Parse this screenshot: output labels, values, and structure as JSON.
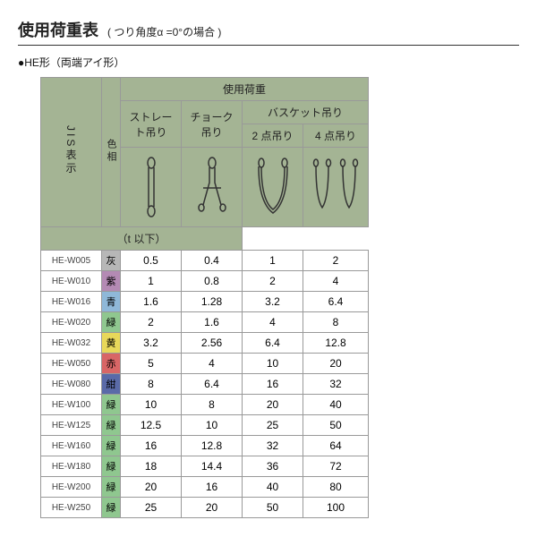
{
  "title": "使用荷重表",
  "subtitle": "( つり角度α =0°の場合 )",
  "bullet": "●HE形（両端アイ形）",
  "headers": {
    "jis": "JIS表示",
    "color": "色相",
    "load_group": "使用荷重",
    "straight": "ストレート吊り",
    "choke": "チョーク吊り",
    "basket": "バスケット吊り",
    "two_point": "2 点吊り",
    "four_point": "4 点吊り",
    "unit": "（t 以下）"
  },
  "colors": {
    "灰": "#b7b7b7",
    "紫": "#b48ab4",
    "青": "#8fb8d8",
    "緑": "#8fc78f",
    "黄": "#e8d85a",
    "赤": "#d86666",
    "紺": "#5a6aa8"
  },
  "rows": [
    {
      "code": "HE-W005",
      "colorLabel": "灰",
      "colorKey": "灰",
      "v": [
        0.5,
        0.4,
        1.0,
        2.0
      ]
    },
    {
      "code": "HE-W010",
      "colorLabel": "紫",
      "colorKey": "紫",
      "v": [
        1.0,
        0.8,
        2.0,
        4.0
      ]
    },
    {
      "code": "HE-W016",
      "colorLabel": "青",
      "colorKey": "青",
      "v": [
        1.6,
        1.28,
        3.2,
        6.4
      ]
    },
    {
      "code": "HE-W020",
      "colorLabel": "緑",
      "colorKey": "緑",
      "v": [
        2.0,
        1.6,
        4.0,
        8.0
      ]
    },
    {
      "code": "HE-W032",
      "colorLabel": "黄",
      "colorKey": "黄",
      "v": [
        3.2,
        2.56,
        6.4,
        12.8
      ]
    },
    {
      "code": "HE-W050",
      "colorLabel": "赤",
      "colorKey": "赤",
      "v": [
        5.0,
        4.0,
        10.0,
        20.0
      ]
    },
    {
      "code": "HE-W080",
      "colorLabel": "紺",
      "colorKey": "紺",
      "v": [
        8.0,
        6.4,
        16.0,
        32.0
      ]
    },
    {
      "code": "HE-W100",
      "colorLabel": "緑",
      "colorKey": "緑",
      "v": [
        10.0,
        8.0,
        20.0,
        40.0
      ]
    },
    {
      "code": "HE-W125",
      "colorLabel": "緑",
      "colorKey": "緑",
      "v": [
        12.5,
        10.0,
        25.0,
        50.0
      ]
    },
    {
      "code": "HE-W160",
      "colorLabel": "緑",
      "colorKey": "緑",
      "v": [
        16.0,
        12.8,
        32.0,
        64.0
      ]
    },
    {
      "code": "HE-W180",
      "colorLabel": "緑",
      "colorKey": "緑",
      "v": [
        18.0,
        14.4,
        36.0,
        72.0
      ]
    },
    {
      "code": "HE-W200",
      "colorLabel": "緑",
      "colorKey": "緑",
      "v": [
        20.0,
        16.0,
        40.0,
        80.0
      ]
    },
    {
      "code": "HE-W250",
      "colorLabel": "緑",
      "colorKey": "緑",
      "v": [
        25.0,
        20.0,
        50.0,
        100.0
      ]
    }
  ]
}
